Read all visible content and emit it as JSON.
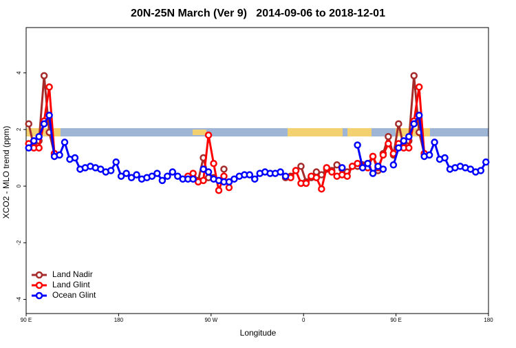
{
  "chart_data": {
    "type": "line",
    "title": "20N-25N March (Ver 9)   2014-09-06 to 2018-12-01",
    "x_label": "Longitude",
    "y_label": "XCO2 - MLO trend (ppm)",
    "x": [
      92.5,
      97.5,
      102.5,
      107.5,
      112.5,
      117.5,
      122.5,
      127.5,
      132.5,
      137.5,
      142.5,
      147.5,
      152.5,
      157.5,
      162.5,
      167.5,
      172.5,
      177.5,
      182.5,
      187.5,
      192.5,
      197.5,
      202.5,
      207.5,
      212.5,
      217.5,
      222.5,
      227.5,
      232.5,
      237.5,
      242.5,
      247.5,
      252.5,
      257.5,
      262.5,
      267.5,
      272.5,
      277.5,
      282.5,
      287.5,
      292.5,
      297.5,
      302.5,
      307.5,
      312.5,
      317.5,
      322.5,
      327.5,
      332.5,
      337.5,
      342.5,
      347.5,
      352.5,
      357.5,
      362.5,
      367.5,
      372.5,
      377.5,
      382.5,
      387.5,
      392.5,
      397.5,
      402.5,
      407.5,
      412.5,
      417.5,
      422.5,
      427.5,
      432.5,
      437.5,
      442.5,
      447.5,
      452.5,
      457.5,
      462.5,
      467.5,
      472.5,
      477.5,
      482.5,
      487.5,
      492.5,
      497.5,
      502.5,
      507.5,
      512.5,
      517.5,
      522.5,
      527.5,
      532.5,
      537.5
    ],
    "series": [
      {
        "name": "Land Nadir",
        "color": "#a52a2a",
        "values": [
          2.2,
          1.4,
          1.6,
          3.9,
          1.9,
          1.15,
          null,
          null,
          null,
          null,
          null,
          null,
          null,
          null,
          null,
          null,
          null,
          null,
          null,
          null,
          null,
          null,
          null,
          null,
          null,
          null,
          null,
          null,
          null,
          null,
          null,
          0.3,
          0.3,
          0.2,
          1.0,
          0.3,
          0.3,
          null,
          0.6,
          null,
          null,
          null,
          null,
          null,
          null,
          null,
          null,
          null,
          null,
          null,
          0.3,
          0.35,
          0.55,
          0.7,
          0.15,
          0.3,
          0.5,
          0.4,
          0.6,
          0.55,
          0.75,
          0.6,
          0.5,
          0.7,
          0.7,
          0.75,
          0.8,
          1.05,
          0.55,
          1.15,
          1.75,
          1.1,
          2.2,
          1.4,
          1.6,
          3.9,
          1.9,
          1.15,
          null,
          null,
          null,
          null,
          null,
          null,
          null,
          null,
          null,
          null,
          null,
          null
        ]
      },
      {
        "name": "Land Glint",
        "color": "#ff0000",
        "values": [
          1.5,
          1.35,
          1.35,
          2.3,
          3.5,
          1.15,
          null,
          null,
          null,
          null,
          null,
          null,
          null,
          null,
          null,
          null,
          null,
          null,
          null,
          null,
          null,
          null,
          null,
          null,
          null,
          null,
          null,
          null,
          null,
          null,
          null,
          0.35,
          0.45,
          0.15,
          0.2,
          1.8,
          0.8,
          -0.15,
          0.35,
          -0.05,
          null,
          null,
          null,
          null,
          null,
          null,
          null,
          null,
          null,
          null,
          null,
          0.3,
          0.55,
          0.1,
          0.1,
          0.35,
          0.3,
          -0.1,
          0.65,
          0.5,
          0.35,
          0.4,
          0.35,
          0.7,
          0.8,
          0.7,
          0.65,
          1.05,
          0.65,
          1.1,
          1.5,
          1.15,
          1.5,
          1.35,
          1.35,
          2.3,
          3.5,
          1.15,
          null,
          null,
          null,
          null,
          null,
          null,
          null,
          null,
          null,
          null,
          null,
          null
        ]
      },
      {
        "name": "Ocean Glint",
        "color": "#0000ff",
        "values": [
          1.35,
          1.6,
          1.75,
          2.2,
          2.5,
          1.05,
          1.1,
          1.55,
          0.95,
          1.0,
          0.6,
          0.65,
          0.7,
          0.65,
          0.6,
          0.5,
          0.55,
          0.85,
          0.35,
          0.45,
          0.3,
          0.4,
          0.25,
          0.3,
          0.35,
          0.45,
          0.2,
          0.35,
          0.5,
          0.35,
          0.25,
          0.25,
          0.25,
          null,
          0.6,
          0.5,
          0.25,
          0.2,
          0.15,
          0.15,
          0.25,
          0.35,
          0.4,
          0.4,
          0.25,
          0.45,
          0.5,
          0.45,
          0.45,
          0.5,
          0.35,
          null,
          null,
          null,
          null,
          null,
          null,
          null,
          null,
          null,
          null,
          0.65,
          null,
          null,
          1.45,
          0.65,
          0.8,
          0.45,
          0.7,
          0.6,
          null,
          0.75,
          1.35,
          1.6,
          1.75,
          2.2,
          2.5,
          1.05,
          1.1,
          1.55,
          0.95,
          1.0,
          0.6,
          0.65,
          0.7,
          0.65,
          0.6,
          0.5,
          0.55,
          0.85
        ]
      }
    ],
    "xlim": [
      90,
      540
    ],
    "xticks": [
      {
        "value": 90,
        "label": "90 E"
      },
      180,
      {
        "value": 270,
        "label": "90 W"
      },
      {
        "value": 360,
        "label": "0"
      },
      {
        "value": 450,
        "label": "90 E"
      },
      {
        "value": 540,
        "label": "180"
      }
    ],
    "ylim": [
      -4.5,
      5.6
    ],
    "yticks": [
      -4,
      -2,
      0,
      2,
      4
    ],
    "legend": "bottomleft"
  }
}
